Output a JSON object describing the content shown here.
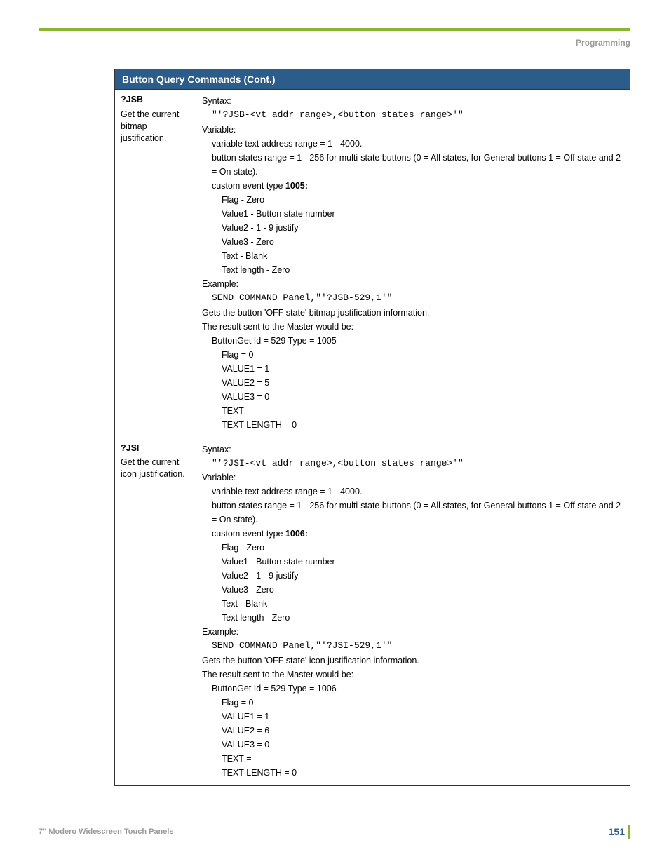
{
  "header": {
    "section": "Programming"
  },
  "table": {
    "title": "Button Query Commands (Cont.)",
    "rows": [
      {
        "cmd": "?JSB",
        "desc": "Get the current bitmap justification.",
        "syntax_label": "Syntax:",
        "syntax_code": "\"'?JSB-<vt addr range>,<button states range>'\"",
        "variable_label": "Variable:",
        "var1": "variable text address range = 1 - 4000.",
        "var2": "button states range = 1 - 256 for multi-state buttons (0 = All states, for General buttons 1 = Off state and 2 = On state).",
        "cet_prefix": "custom event type ",
        "cet_num": "1005:",
        "flag": "Flag   - Zero",
        "v1": "Value1 - Button state number",
        "v2": "Value2 - 1 - 9 justify",
        "v3": "Value3 - Zero",
        "txt": "Text   - Blank",
        "tlen": "Text length - Zero",
        "example_label": "Example:",
        "example_code": "SEND COMMAND Panel,\"'?JSB-529,1'\"",
        "gets": "Gets the button 'OFF state' bitmap justification information.",
        "result_label": "The result sent to the Master would be:",
        "r1": "ButtonGet  Id = 529 Type = 1005",
        "r2": "Flag  = 0",
        "r3": "VALUE1 = 1",
        "r4": "VALUE2 = 5",
        "r5": "VALUE3 = 0",
        "r6": "TEXT =",
        "r7": "TEXT LENGTH = 0"
      },
      {
        "cmd": "?JSI",
        "desc": "Get the current icon justification.",
        "syntax_label": "Syntax:",
        "syntax_code": "\"'?JSI-<vt addr range>,<button states range>'\"",
        "variable_label": "Variable:",
        "var1": "variable text address range = 1 - 4000.",
        "var2": "button states range = 1 - 256 for multi-state buttons (0 = All states, for General buttons 1 = Off state and 2 = On state).",
        "cet_prefix": "custom event type ",
        "cet_num": "1006:",
        "flag": "Flag   - Zero",
        "v1": "Value1 - Button state number",
        "v2": "Value2 - 1 - 9 justify",
        "v3": "Value3 - Zero",
        "txt": "Text   - Blank",
        "tlen": "Text length - Zero",
        "example_label": "Example:",
        "example_code": "SEND COMMAND Panel,\"'?JSI-529,1'\"",
        "gets": "Gets the button 'OFF state' icon justification information.",
        "result_label": "The result sent to the Master would be:",
        "r1": "ButtonGet Id = 529 Type = 1006",
        "r2": "Flag  = 0",
        "r3": "VALUE1 = 1",
        "r4": "VALUE2 = 6",
        "r5": "VALUE3 = 0",
        "r6": "TEXT =",
        "r7": "TEXT LENGTH = 0"
      }
    ]
  },
  "footer": {
    "left": "7\" Modero Widescreen Touch Panels",
    "page": "151"
  }
}
